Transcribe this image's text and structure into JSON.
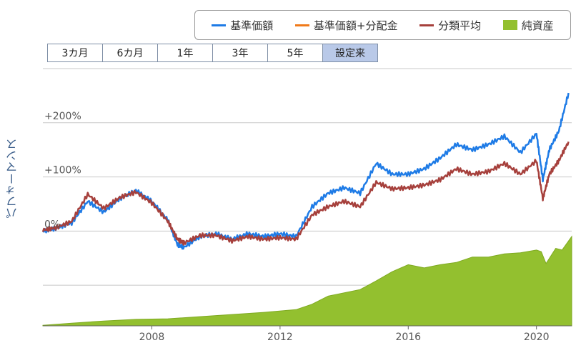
{
  "legend": {
    "items": [
      {
        "label": "基準価額",
        "color": "#1e7be6",
        "kind": "line"
      },
      {
        "label": "基準価額+分配金",
        "color": "#f07a1a",
        "kind": "line"
      },
      {
        "label": "分類平均",
        "color": "#a6403c",
        "kind": "line"
      },
      {
        "label": "純資産",
        "color": "#93c02f",
        "kind": "box"
      }
    ]
  },
  "periods": {
    "items": [
      "3カ月",
      "6カ月",
      "1年",
      "3年",
      "5年",
      "設定来"
    ],
    "active_index": 5
  },
  "chart_data": {
    "type": "line",
    "ylabel": "パフォーマンス",
    "x_ticks": [
      "2008",
      "2012",
      "2016",
      "2020"
    ],
    "y_ticks": [
      {
        "value": 0,
        "label": "0%"
      },
      {
        "value": 100,
        "label": "+100%"
      },
      {
        "value": 200,
        "label": "+200%"
      }
    ],
    "xlim": [
      2004.6,
      2021.1
    ],
    "ylim": [
      -175,
      300
    ],
    "grid": true,
    "series": [
      {
        "name": "基準価額",
        "color": "#1e7be6",
        "x": [
          2004.6,
          2005.0,
          2005.5,
          2006.0,
          2006.5,
          2007.0,
          2007.5,
          2008.0,
          2008.5,
          2008.8,
          2009.0,
          2009.5,
          2010.0,
          2010.5,
          2011.0,
          2011.5,
          2012.0,
          2012.5,
          2013.0,
          2013.5,
          2014.0,
          2014.5,
          2015.0,
          2015.5,
          2016.0,
          2016.5,
          2017.0,
          2017.5,
          2018.0,
          2018.5,
          2019.0,
          2019.5,
          2020.0,
          2020.2,
          2020.4,
          2020.7,
          2021.0
        ],
        "y": [
          0,
          5,
          15,
          55,
          35,
          60,
          75,
          55,
          20,
          -25,
          -30,
          -10,
          -5,
          -15,
          -5,
          -10,
          -5,
          -10,
          45,
          70,
          80,
          70,
          125,
          105,
          105,
          115,
          135,
          160,
          150,
          160,
          175,
          145,
          180,
          95,
          150,
          185,
          255
        ]
      },
      {
        "name": "分類平均",
        "color": "#a6403c",
        "x": [
          2004.6,
          2005.0,
          2005.5,
          2006.0,
          2006.5,
          2007.0,
          2007.5,
          2008.0,
          2008.5,
          2008.8,
          2009.0,
          2009.5,
          2010.0,
          2010.5,
          2011.0,
          2011.5,
          2012.0,
          2012.5,
          2013.0,
          2013.5,
          2014.0,
          2014.5,
          2015.0,
          2015.5,
          2016.0,
          2016.5,
          2017.0,
          2017.5,
          2018.0,
          2018.5,
          2019.0,
          2019.5,
          2020.0,
          2020.2,
          2020.4,
          2020.7,
          2021.0
        ],
        "y": [
          2,
          6,
          18,
          68,
          42,
          62,
          72,
          52,
          18,
          -15,
          -22,
          -8,
          -8,
          -18,
          -10,
          -15,
          -12,
          -15,
          30,
          45,
          55,
          45,
          90,
          78,
          80,
          85,
          95,
          115,
          105,
          110,
          125,
          105,
          130,
          60,
          105,
          130,
          165
        ]
      }
    ],
    "area": {
      "name": "純資産",
      "color": "#93c02f",
      "x": [
        2004.6,
        2005.5,
        2006.5,
        2007.5,
        2008.5,
        2009.5,
        2010.5,
        2011.5,
        2012.5,
        2013.0,
        2013.5,
        2014.5,
        2015.0,
        2015.5,
        2016.0,
        2016.5,
        2017.0,
        2017.5,
        2018.0,
        2018.5,
        2019.0,
        2019.5,
        2020.0,
        2020.15,
        2020.3,
        2020.6,
        2020.8,
        2021.1
      ],
      "y": [
        -174,
        -170,
        -166,
        -163,
        -162,
        -158,
        -154,
        -150,
        -145,
        -135,
        -120,
        -108,
        -92,
        -75,
        -62,
        -68,
        -62,
        -58,
        -48,
        -48,
        -42,
        -40,
        -35,
        -38,
        -60,
        -32,
        -35,
        -10
      ]
    }
  }
}
